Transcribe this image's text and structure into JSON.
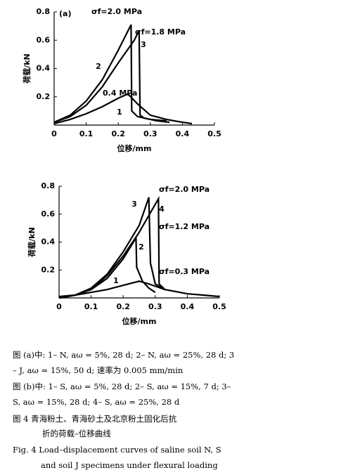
{
  "chart_data": [
    {
      "type": "line",
      "panel": "(a)",
      "x_label": "位移/mm",
      "y_label": "荷载/kN",
      "xlim": [
        0,
        0.5
      ],
      "xticks": [
        0,
        0.1,
        0.2,
        0.3,
        0.4,
        0.5
      ],
      "ylim": [
        0,
        0.8
      ],
      "yticks": [
        0.2,
        0.4,
        0.6,
        0.8
      ],
      "annotations": [
        "σf=2.0 MPa",
        "σf=1.8 MPa",
        "0.4 MPa"
      ],
      "series": [
        {
          "name": "1",
          "color": "#000000",
          "x": [
            0,
            0.05,
            0.1,
            0.15,
            0.2,
            0.23,
            0.26,
            0.3,
            0.35,
            0.4,
            0.43
          ],
          "values": [
            0.01,
            0.04,
            0.08,
            0.13,
            0.19,
            0.22,
            0.15,
            0.07,
            0.04,
            0.02,
            0.01
          ]
        },
        {
          "name": "2",
          "color": "#000000",
          "x": [
            0,
            0.05,
            0.1,
            0.15,
            0.2,
            0.24,
            0.242,
            0.26,
            0.3,
            0.35
          ],
          "values": [
            0.02,
            0.07,
            0.17,
            0.32,
            0.53,
            0.71,
            0.1,
            0.06,
            0.04,
            0.03
          ]
        },
        {
          "name": "3",
          "color": "#000000",
          "x": [
            0,
            0.05,
            0.1,
            0.15,
            0.2,
            0.25,
            0.265,
            0.268,
            0.28,
            0.32,
            0.36
          ],
          "values": [
            0.02,
            0.06,
            0.14,
            0.27,
            0.44,
            0.6,
            0.67,
            0.07,
            0.05,
            0.03,
            0.02
          ]
        }
      ]
    },
    {
      "type": "line",
      "x_label": "位移/mm",
      "y_label": "荷载/kN",
      "xlim": [
        0,
        0.5
      ],
      "xticks": [
        0,
        0.1,
        0.2,
        0.3,
        0.4,
        0.5
      ],
      "ylim": [
        0,
        0.8
      ],
      "yticks": [
        0.2,
        0.4,
        0.6,
        0.8
      ],
      "annotations": [
        "σf=2.0 MPa",
        "σf=1.2 MPa",
        "σf=0.3 MPa"
      ],
      "series": [
        {
          "name": "1",
          "color": "#000000",
          "x": [
            0,
            0.05,
            0.1,
            0.15,
            0.2,
            0.25,
            0.28,
            0.33,
            0.4,
            0.45,
            0.5
          ],
          "values": [
            0.01,
            0.02,
            0.04,
            0.06,
            0.09,
            0.12,
            0.1,
            0.06,
            0.03,
            0.02,
            0.01
          ]
        },
        {
          "name": "2",
          "color": "#000000",
          "x": [
            0,
            0.05,
            0.1,
            0.15,
            0.2,
            0.24,
            0.242,
            0.26,
            0.28,
            0.3
          ],
          "values": [
            0,
            0.02,
            0.06,
            0.14,
            0.28,
            0.43,
            0.22,
            0.12,
            0.07,
            0.04
          ]
        },
        {
          "name": "3",
          "color": "#000000",
          "x": [
            0,
            0.05,
            0.1,
            0.15,
            0.2,
            0.25,
            0.28,
            0.285,
            0.3,
            0.33
          ],
          "values": [
            0,
            0.02,
            0.07,
            0.17,
            0.33,
            0.52,
            0.72,
            0.25,
            0.1,
            0.06
          ]
        },
        {
          "name": "4",
          "color": "#000000",
          "x": [
            0,
            0.05,
            0.1,
            0.15,
            0.2,
            0.25,
            0.31,
            0.312,
            0.33
          ],
          "values": [
            0,
            0.02,
            0.06,
            0.16,
            0.3,
            0.47,
            0.71,
            0.1,
            0.06
          ]
        }
      ]
    }
  ],
  "caption": {
    "lines": [
      "图 (a)中: 1– N, aω = 5%, 28 d; 2– N, aω = 25%, 28 d; 3",
      "– J, aω = 15%, 50 d; 速率为 0.005 mm/min",
      "图 (b)中: 1– S, aω = 5%, 28 d; 2– S, aω = 15%, 7 d; 3–",
      "S, aω = 15%, 28 d; 4– S, aω = 25%, 28 d",
      "图 4  青海粉土、青海砂土及北京粉土固化后抗",
      "折的荷载–位移曲线",
      "Fig. 4 Load–displacement curves of saline soil N, S",
      "and soil J specimens under flexural loading"
    ]
  }
}
